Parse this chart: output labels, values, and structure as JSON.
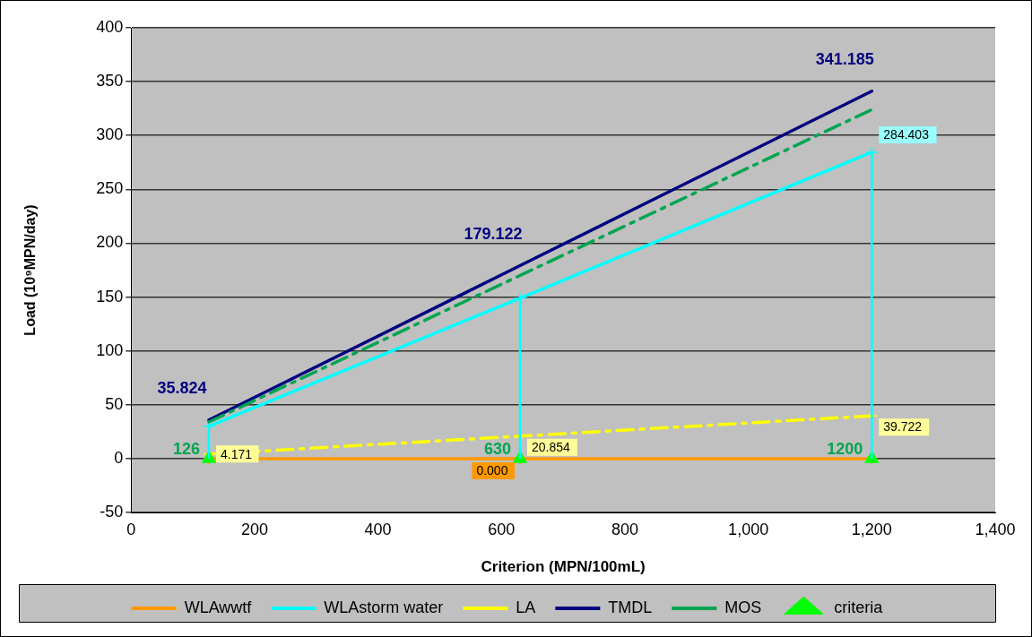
{
  "chart_data": {
    "type": "line",
    "xlabel": "Criterion (MPN/100mL)",
    "ylabel": "Load (10⁹MPN/day)",
    "xlim": [
      0,
      1400
    ],
    "xticks": [
      0,
      200,
      400,
      600,
      800,
      {
        "value": 1000,
        "label": "1,000"
      },
      {
        "value": 1200,
        "label": "1,200"
      },
      {
        "value": 1400,
        "label": "1,400"
      }
    ],
    "ylim": [
      -50,
      400
    ],
    "yticks": [
      -50,
      0,
      50,
      100,
      150,
      200,
      250,
      300,
      350,
      400
    ],
    "grid": "y",
    "legend": "bottom",
    "annotations": [
      {
        "text": "126",
        "x": 126,
        "y": 0
      },
      {
        "text": "630",
        "x": 630,
        "y": 0
      },
      {
        "text": "1200",
        "x": 1200,
        "y": 0
      }
    ],
    "series": [
      {
        "name": "WLAwwtf",
        "color": "#ff9900",
        "marker": "cross",
        "line_style": "solid",
        "x": [
          126,
          630,
          1200
        ],
        "values": [
          0,
          0,
          0
        ],
        "value_labels": [
          null,
          "0.000",
          null
        ]
      },
      {
        "name": "WLAstorm water",
        "color": "#00ffff",
        "marker": "cross",
        "line_style": "solid",
        "x": [
          126,
          630,
          1200
        ],
        "values": [
          30,
          149,
          284.403
        ],
        "errors": [
          [
            0,
            30
          ],
          [
            0,
            149
          ],
          [
            0,
            284.403
          ]
        ],
        "value_labels": [
          null,
          null,
          "284.403"
        ]
      },
      {
        "name": "LA",
        "color": "#ffff00",
        "marker": "cross",
        "line_style": "dashed",
        "x": [
          126,
          630,
          1200
        ],
        "values": [
          4.171,
          20.854,
          39.722
        ],
        "data_labels": true
      },
      {
        "name": "TMDL",
        "color": "#000080",
        "marker": "none",
        "line_style": "solid",
        "x": [
          126,
          630,
          1200
        ],
        "values": [
          35.824,
          179.122,
          341.185
        ],
        "data_labels": true
      },
      {
        "name": "MOS",
        "color": "#00a550",
        "marker": "none",
        "line_style": "dashed",
        "x": [
          126,
          630,
          1200
        ],
        "values": [
          34,
          170,
          324
        ]
      },
      {
        "name": "criteria",
        "type": "scatter",
        "color": "#00ff00",
        "marker": "triangle",
        "x": [
          126,
          630,
          1200
        ],
        "values": [
          0,
          0,
          0
        ]
      }
    ]
  }
}
